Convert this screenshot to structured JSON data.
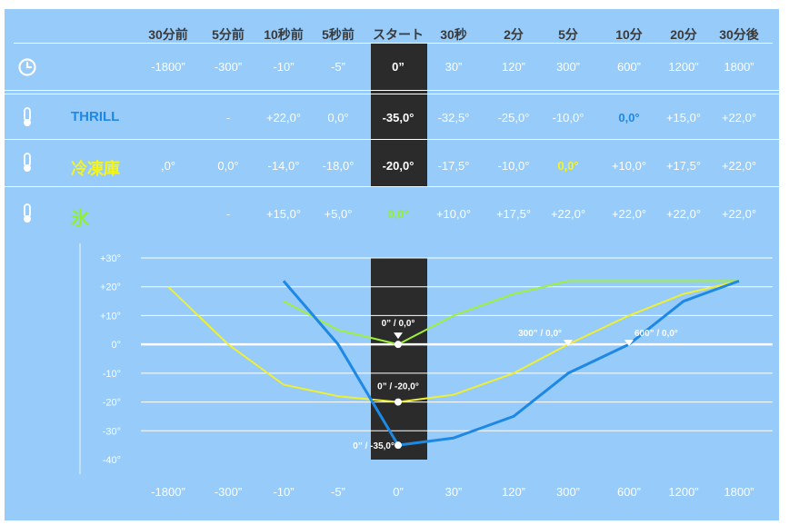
{
  "header": {
    "time_labels": [
      "30分前",
      "5分前",
      "10秒前",
      "5秒前",
      "スタート",
      "30秒",
      "2分",
      "5分",
      "10分",
      "20分",
      "30分後"
    ]
  },
  "seconds_row": {
    "icon": "clock-icon",
    "values": [
      "-1800”",
      "-300”",
      "-10”",
      "-5”",
      "0”",
      "30”",
      "120”",
      "300”",
      "600”",
      "1200”",
      "1800”"
    ]
  },
  "rows": [
    {
      "label": "THRILL",
      "label_color": "#1e88e5",
      "icon": "thermometer-icon",
      "values": [
        "",
        "-",
        "+22,0°",
        "0,0°",
        "-35,0°",
        "-32,5°",
        "-25,0°",
        "-10,0°",
        "0,0°",
        "+15,0°",
        "+22,0°"
      ],
      "highlight_index": 8,
      "highlight": "hi-blue"
    },
    {
      "label": "冷凍庫",
      "label_color": "#f5f51e",
      "icon": "thermometer-icon",
      "values": [
        ",0°",
        "0,0°",
        "-14,0°",
        "-18,0°",
        "-20,0°",
        "-17,5°",
        "-10,0°",
        "0,0°",
        "+10,0°",
        "+17,5°",
        "+22,0°"
      ],
      "highlight_index": 7,
      "highlight": "hi-yellow"
    },
    {
      "label": "氷",
      "label_color": "#8ef02e",
      "icon": "thermometer-icon",
      "values": [
        "",
        "-",
        "+15,0°",
        "+5,0°",
        "0,0°",
        "+10,0°",
        "+17,5°",
        "+22,0°",
        "+22,0°",
        "+22,0°",
        "+22,0°"
      ],
      "highlight_index": 4,
      "highlight": "hi-green"
    }
  ],
  "chart_data": {
    "type": "line",
    "categories": [
      "-1800”",
      "-300”",
      "-10”",
      "-5”",
      "0”",
      "30”",
      "120”",
      "300”",
      "600”",
      "1200”",
      "1800”"
    ],
    "y_tick_labels": [
      "+30°",
      "+20°",
      "+10°",
      "0°",
      "-10°",
      "-20°",
      "-30°",
      "-40°"
    ],
    "y_ticks": [
      30,
      20,
      10,
      0,
      -10,
      -20,
      -30,
      -40
    ],
    "ylim": [
      -40,
      30
    ],
    "series": [
      {
        "name": "THRILL",
        "color": "#1e88e5",
        "values": [
          null,
          null,
          22,
          0,
          -35,
          -32.5,
          -25,
          -10,
          0,
          15,
          22
        ]
      },
      {
        "name": "冷凍庫",
        "color": "#f0f030",
        "values": [
          20,
          0,
          -14,
          -18,
          -20,
          -17.5,
          -10,
          0,
          10,
          17.5,
          22
        ]
      },
      {
        "name": "氷",
        "color": "#9ef03a",
        "values": [
          null,
          null,
          15,
          5,
          0,
          10,
          17.5,
          22,
          22,
          22,
          22
        ]
      }
    ],
    "annotations": [
      {
        "text": "0” / 0,0°",
        "series": 2,
        "index": 4,
        "marker": "dot-triangle"
      },
      {
        "text": "0” / -20,0°",
        "series": 1,
        "index": 4,
        "marker": "dot"
      },
      {
        "text": "0” / -35,0°",
        "series": 0,
        "index": 4,
        "marker": "dot"
      },
      {
        "text": "300” / 0,0°",
        "series": 1,
        "index": 7,
        "marker": "triangle"
      },
      {
        "text": "600” / 0,0°",
        "series": 0,
        "index": 8,
        "marker": "triangle"
      }
    ]
  }
}
